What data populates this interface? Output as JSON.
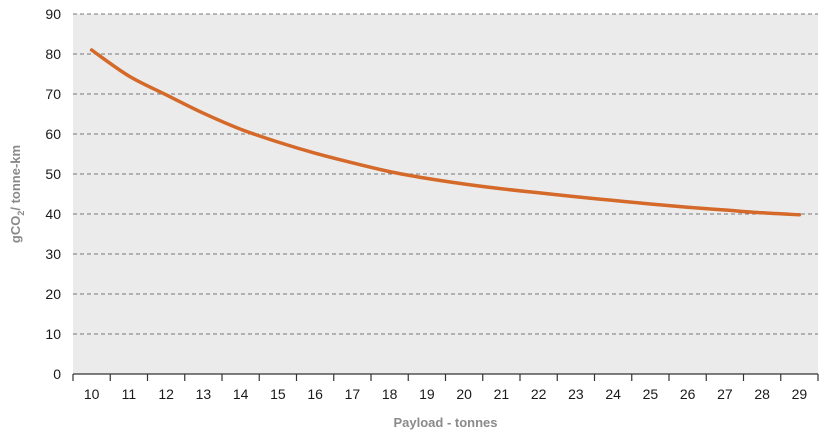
{
  "chart_data": {
    "type": "line",
    "xlabel": "Payload - tonnes",
    "ylabel_parts": [
      "gCO",
      "2",
      "/ tonne-km"
    ],
    "ylim": [
      0,
      90
    ],
    "yticks": [
      0,
      10,
      20,
      30,
      40,
      50,
      60,
      70,
      80,
      90
    ],
    "x": [
      10,
      11,
      12,
      13,
      14,
      15,
      16,
      17,
      18,
      19,
      20,
      21,
      22,
      23,
      24,
      25,
      26,
      27,
      28,
      29
    ],
    "series": [
      {
        "values": [
          81,
          74.5,
          69.8,
          65.2,
          61.2,
          58,
          55.2,
          52.8,
          50.6,
          48.9,
          47.5,
          46.3,
          45.3,
          44.3,
          43.4,
          42.5,
          41.7,
          41,
          40.3,
          39.8
        ]
      }
    ],
    "grid": true,
    "colors": {
      "line": "#d4692a",
      "plot_bg": "#ebebeb",
      "grid": "#777777",
      "axis": "#333333"
    }
  }
}
